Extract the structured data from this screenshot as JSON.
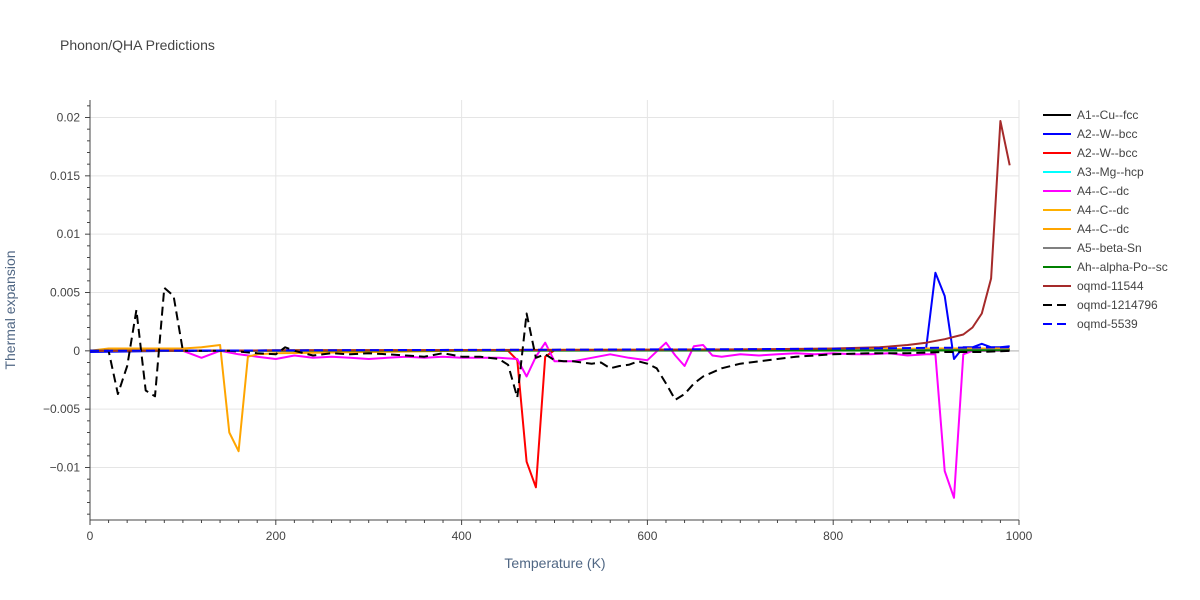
{
  "chart_data": {
    "type": "line",
    "title": "Phonon/QHA Predictions",
    "xlabel": "Temperature (K)",
    "ylabel": "Thermal expansion",
    "xlim": [
      0,
      1000
    ],
    "ylim": [
      -0.0145,
      0.0215
    ],
    "x_ticks": [
      0,
      200,
      400,
      600,
      800,
      1000
    ],
    "x_tick_labels": [
      "0",
      "200",
      "400",
      "600",
      "800",
      "1000"
    ],
    "y_ticks": [
      -0.01,
      -0.005,
      0,
      0.005,
      0.01,
      0.015,
      0.02
    ],
    "y_tick_labels": [
      "−0.01",
      "−0.005",
      "0",
      "0.005",
      "0.01",
      "0.015",
      "0.02"
    ],
    "grid": true,
    "legend_position": "right",
    "series": [
      {
        "name": "A1--Cu--fcc",
        "color": "#000000",
        "dash": "solid",
        "x": [
          0,
          100,
          200,
          300,
          400,
          500,
          600,
          700,
          800,
          900,
          990
        ],
        "y": [
          0.0,
          2e-05,
          4e-05,
          5e-05,
          6e-05,
          7e-05,
          8e-05,
          9e-05,
          0.0001,
          0.00011,
          0.00012
        ]
      },
      {
        "name": "A2--W--bcc",
        "color": "#0000ff",
        "dash": "solid",
        "x": [
          0,
          100,
          200,
          300,
          400,
          500,
          600,
          700,
          800,
          880,
          900,
          910,
          920,
          930,
          940,
          950,
          960,
          970,
          980,
          990
        ],
        "y": [
          -0.0001,
          0.0,
          2e-05,
          3e-05,
          4e-05,
          5e-05,
          6e-05,
          8e-05,
          0.0001,
          0.00012,
          0.0002,
          0.0067,
          0.0047,
          -0.0007,
          0.0003,
          0.0003,
          0.0006,
          0.0003,
          0.0003,
          0.0004
        ]
      },
      {
        "name": "A2--W--bcc",
        "color": "#ff0000",
        "dash": "solid",
        "x": [
          0,
          100,
          200,
          300,
          400,
          450,
          460,
          470,
          480,
          490,
          500,
          600,
          700,
          800,
          900,
          990
        ],
        "y": [
          0.0,
          2e-05,
          3e-05,
          4e-05,
          5e-05,
          0.0,
          -0.0008,
          -0.0095,
          -0.0117,
          -0.0005,
          5e-05,
          6e-05,
          7e-05,
          8e-05,
          9e-05,
          0.0001
        ]
      },
      {
        "name": "A3--Mg--hcp",
        "color": "#00ffff",
        "dash": "solid",
        "x": [
          0,
          200,
          400,
          600,
          800,
          990
        ],
        "y": [
          0.0,
          3e-05,
          5e-05,
          7e-05,
          9e-05,
          0.00011
        ]
      },
      {
        "name": "A4--C--dc",
        "color": "#ff00ff",
        "dash": "solid",
        "x": [
          0,
          50,
          100,
          120,
          140,
          160,
          180,
          200,
          220,
          240,
          260,
          280,
          300,
          320,
          340,
          360,
          380,
          400,
          420,
          440,
          460,
          470,
          480,
          490,
          500,
          520,
          540,
          560,
          580,
          600,
          620,
          630,
          640,
          650,
          660,
          670,
          680,
          700,
          720,
          740,
          760,
          780,
          800,
          820,
          840,
          860,
          880,
          900,
          910,
          920,
          930,
          940,
          950,
          960,
          970,
          980,
          990
        ],
        "y": [
          0.0,
          0.0,
          0.0,
          -0.0006,
          0.0,
          -0.0003,
          -0.0005,
          -0.0007,
          -0.0004,
          -0.0006,
          -0.0005,
          -0.0006,
          -0.0007,
          -0.0006,
          -0.0005,
          -0.0006,
          -0.0005,
          -0.0006,
          -0.0006,
          -0.0006,
          -0.0007,
          -0.0022,
          -0.0005,
          0.0007,
          -0.0009,
          -0.0009,
          -0.0006,
          -0.0003,
          -0.0006,
          -0.0008,
          0.0007,
          -0.0004,
          -0.0013,
          0.0004,
          0.0005,
          -0.0004,
          -0.0005,
          -0.0003,
          -0.0004,
          -0.0003,
          -0.0002,
          -0.0003,
          -0.0002,
          -0.0003,
          -0.0003,
          -0.0002,
          -0.0004,
          -0.0003,
          -0.0003,
          -0.0103,
          -0.0126,
          -0.0003,
          0.0,
          0.0,
          0.0,
          0.0,
          0.0
        ]
      },
      {
        "name": "A4--C--dc",
        "color": "#ffb000",
        "dash": "solid",
        "x": [
          0,
          200,
          400,
          600,
          800,
          990
        ],
        "y": [
          0.0,
          4e-05,
          7e-05,
          0.0001,
          0.00014,
          0.00018
        ]
      },
      {
        "name": "A4--C--dc",
        "color": "#ffa500",
        "dash": "solid",
        "x": [
          0,
          20,
          60,
          100,
          120,
          140,
          150,
          160,
          170,
          180,
          200,
          300,
          400,
          500,
          600,
          700,
          800,
          900,
          990
        ],
        "y": [
          0.0,
          0.0002,
          0.0002,
          0.0002,
          0.0003,
          0.0005,
          -0.007,
          -0.0086,
          -0.0005,
          -0.0003,
          -0.0002,
          -0.0001,
          0.0,
          0.0001,
          0.0001,
          0.0001,
          0.0001,
          0.0002,
          0.0002
        ]
      },
      {
        "name": "A5--beta-Sn",
        "color": "#808080",
        "dash": "solid",
        "x": [
          0,
          200,
          400,
          600,
          800,
          990
        ],
        "y": [
          0.0,
          2e-05,
          4e-05,
          5e-05,
          6e-05,
          8e-05
        ]
      },
      {
        "name": "Ah--alpha-Po--sc",
        "color": "#008000",
        "dash": "solid",
        "x": [
          0,
          200,
          400,
          600,
          800,
          990
        ],
        "y": [
          0.0,
          1e-05,
          2e-05,
          3e-05,
          3e-05,
          4e-05
        ]
      },
      {
        "name": "oqmd-11544",
        "color": "#a52a2a",
        "dash": "solid",
        "x": [
          0,
          100,
          200,
          300,
          400,
          500,
          600,
          700,
          750,
          800,
          850,
          880,
          900,
          920,
          940,
          950,
          960,
          970,
          980,
          990
        ],
        "y": [
          0.0,
          2e-05,
          4e-05,
          5e-05,
          6e-05,
          7e-05,
          9e-05,
          0.00012,
          0.00016,
          0.0002,
          0.0003,
          0.0005,
          0.0007,
          0.001,
          0.0014,
          0.002,
          0.0032,
          0.0062,
          0.0197,
          0.0159
        ]
      },
      {
        "name": "oqmd-1214796",
        "color": "#000000",
        "dash": "dash",
        "x": [
          0,
          10,
          20,
          30,
          40,
          50,
          60,
          70,
          80,
          90,
          100,
          120,
          150,
          180,
          200,
          210,
          220,
          240,
          260,
          280,
          300,
          320,
          340,
          360,
          380,
          400,
          420,
          440,
          450,
          460,
          470,
          480,
          490,
          500,
          510,
          520,
          540,
          550,
          560,
          570,
          580,
          590,
          600,
          610,
          620,
          630,
          640,
          650,
          660,
          680,
          700,
          720,
          740,
          760,
          780,
          800,
          840,
          880,
          920,
          960,
          990
        ],
        "y": [
          0.0,
          0.0,
          0.0,
          -0.0037,
          -0.0013,
          0.0035,
          -0.0034,
          -0.0039,
          0.0054,
          0.0047,
          0.0,
          0.0,
          0.0,
          -0.0002,
          -0.0003,
          0.0003,
          0.0,
          -0.0004,
          -0.0002,
          -0.0003,
          -0.0002,
          -0.0003,
          -0.0004,
          -0.0005,
          -0.0002,
          -0.0005,
          -0.0005,
          -0.0007,
          -0.0012,
          -0.004,
          0.0032,
          -0.0006,
          -0.0003,
          -0.0008,
          -0.0009,
          -0.0009,
          -0.0011,
          -0.001,
          -0.0015,
          -0.0013,
          -0.0012,
          -0.0009,
          -0.0011,
          -0.0015,
          -0.0028,
          -0.0042,
          -0.0037,
          -0.0028,
          -0.0022,
          -0.0015,
          -0.0011,
          -0.0009,
          -0.0007,
          -0.0005,
          -0.0004,
          -0.0003,
          -0.0002,
          -0.0002,
          -0.0001,
          -0.0001,
          0.0
        ]
      },
      {
        "name": "oqmd-5539",
        "color": "#0000ff",
        "dash": "dash",
        "x": [
          0,
          100,
          200,
          300,
          400,
          500,
          600,
          700,
          800,
          900,
          990
        ],
        "y": [
          0.0,
          2e-05,
          4e-05,
          6e-05,
          8e-05,
          0.0001,
          0.00012,
          0.00014,
          0.00018,
          0.00025,
          0.0003
        ]
      }
    ]
  }
}
